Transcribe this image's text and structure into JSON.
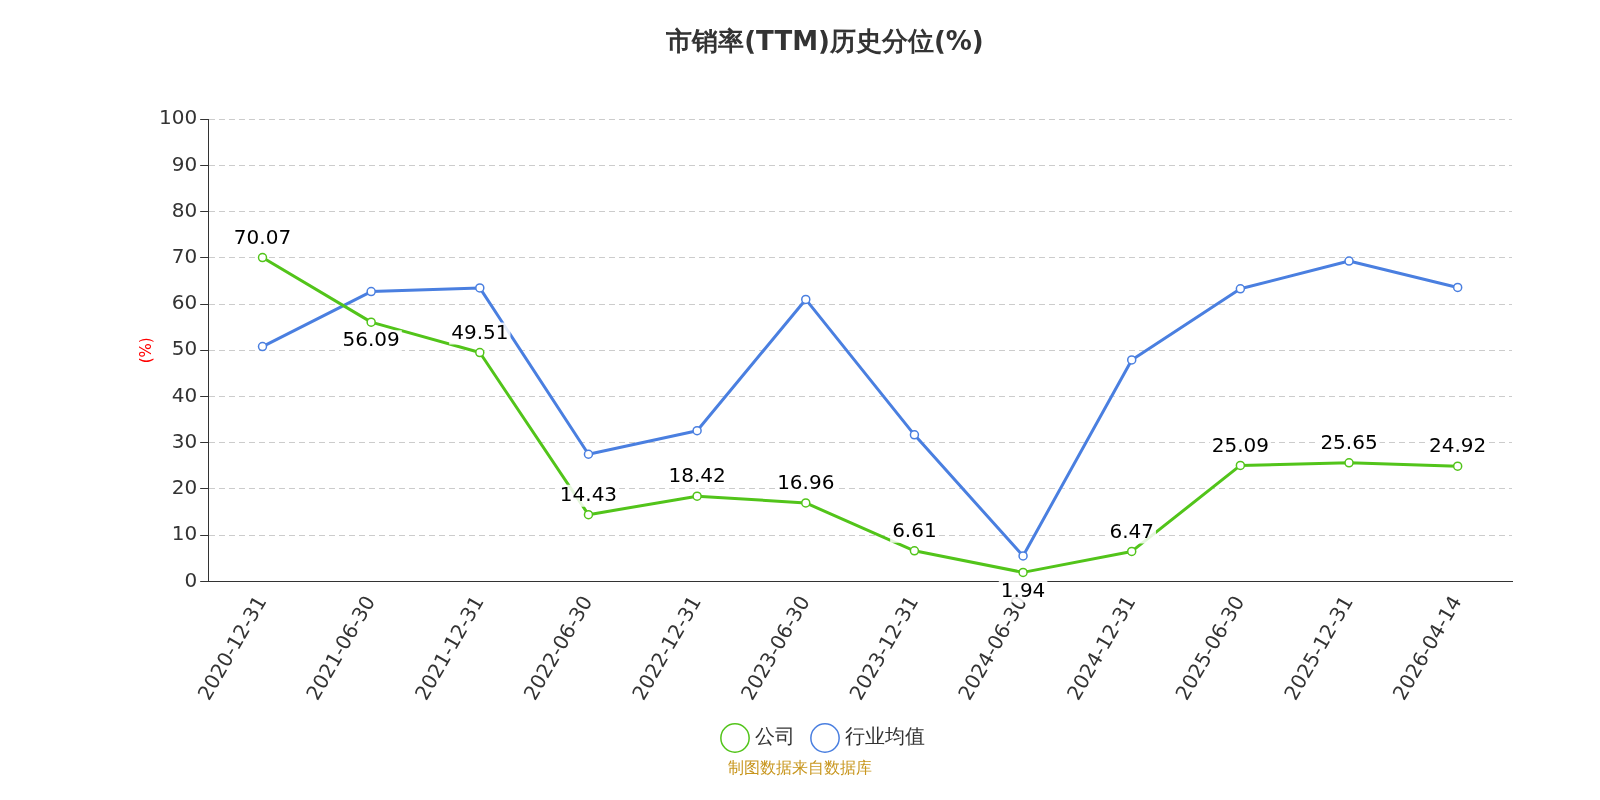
{
  "chart_data": {
    "type": "line",
    "title": "市销率(TTM)历史分位(%)",
    "ylabel": "(%)",
    "categories": [
      "2020-12-31",
      "2021-06-30",
      "2021-12-31",
      "2022-06-30",
      "2022-12-31",
      "2023-06-30",
      "2023-12-31",
      "2024-06-30",
      "2024-12-31",
      "2025-06-30",
      "2025-12-31",
      "2026-04-14"
    ],
    "series": [
      {
        "name": "公司",
        "color": "#52c41a",
        "values": [
          70.07,
          56.09,
          49.51,
          14.43,
          18.42,
          16.96,
          6.61,
          1.94,
          6.47,
          25.09,
          25.65,
          24.92
        ],
        "value_labels": [
          "70.07",
          "56.09",
          "49.51",
          "14.43",
          "18.42",
          "16.96",
          "6.61",
          "1.94",
          "6.47",
          "25.09",
          "25.65",
          "24.92"
        ]
      },
      {
        "name": "行业均值",
        "color": "#4a7fe0",
        "values": [
          50.8,
          62.7,
          63.5,
          27.5,
          32.6,
          61.0,
          31.7,
          5.5,
          47.9,
          63.3,
          69.3,
          63.6
        ]
      }
    ],
    "ylim": [
      0,
      100
    ],
    "yticks": [
      0,
      10,
      20,
      30,
      40,
      50,
      60,
      70,
      80,
      90,
      100
    ],
    "grid": "y",
    "legend": "bottom",
    "marker": "circle",
    "line_style": "solid",
    "annotations": [
      "制图数据来自数据库"
    ]
  }
}
